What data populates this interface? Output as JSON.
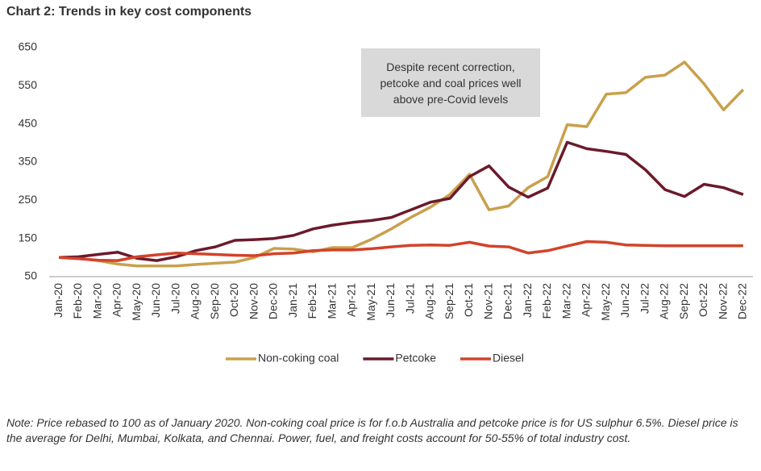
{
  "chart_data": {
    "type": "line",
    "title": "Chart 2: Trends in key cost components",
    "annotation": "Despite recent correction, petcoke and coal prices well above pre-Covid levels",
    "note": "Note: Price rebased to 100 as of January 2020. Non-coking coal price is for f.o.b Australia and petcoke price is for US sulphur 6.5%. Diesel price is the average for Delhi, Mumbai, Kolkata, and Chennai. Power, fuel, and freight costs account for 50-55% of total industry cost.",
    "categories": [
      "Jan-20",
      "Feb-20",
      "Mar-20",
      "Apr-20",
      "May-20",
      "Jun-20",
      "Jul-20",
      "Aug-20",
      "Sep-20",
      "Oct-20",
      "Nov-20",
      "Dec-20",
      "Jan-21",
      "Feb-21",
      "Mar-21",
      "Apr-21",
      "May-21",
      "Jun-21",
      "Jul-21",
      "Aug-21",
      "Sep-21",
      "Oct-21",
      "Nov-21",
      "Dec-21",
      "Jan-22",
      "Feb-22",
      "Mar-22",
      "Apr-22",
      "May-22",
      "Jun-22",
      "Jul-22",
      "Aug-22",
      "Sep-22",
      "Oct-22",
      "Nov-22",
      "Dec-22"
    ],
    "series": [
      {
        "name": "Non-coking coal",
        "color": "#c9a04c",
        "values": [
          100,
          98,
          92,
          83,
          78,
          78,
          78,
          82,
          85,
          88,
          100,
          124,
          122,
          115,
          126,
          126,
          148,
          175,
          205,
          232,
          265,
          318,
          225,
          235,
          283,
          312,
          448,
          443,
          528,
          532,
          572,
          578,
          612,
          555,
          487,
          540
        ]
      },
      {
        "name": "Petcoke",
        "color": "#6b1a2b",
        "values": [
          100,
          102,
          108,
          114,
          98,
          92,
          102,
          118,
          128,
          145,
          147,
          150,
          158,
          175,
          185,
          192,
          197,
          205,
          225,
          245,
          255,
          312,
          340,
          285,
          258,
          282,
          402,
          385,
          378,
          370,
          330,
          278,
          260,
          292,
          283,
          265
        ]
      },
      {
        "name": "Diesel",
        "color": "#d2432a",
        "values": [
          100,
          97,
          93,
          92,
          102,
          107,
          112,
          110,
          108,
          106,
          105,
          110,
          112,
          118,
          120,
          120,
          123,
          128,
          132,
          133,
          132,
          140,
          130,
          128,
          112,
          118,
          130,
          142,
          140,
          133,
          132,
          131,
          131,
          131,
          131,
          131
        ]
      }
    ],
    "ylim": [
      50,
      650
    ],
    "yticks": [
      50,
      150,
      250,
      350,
      450,
      550,
      650
    ],
    "grid": false,
    "legend": "bottom"
  }
}
